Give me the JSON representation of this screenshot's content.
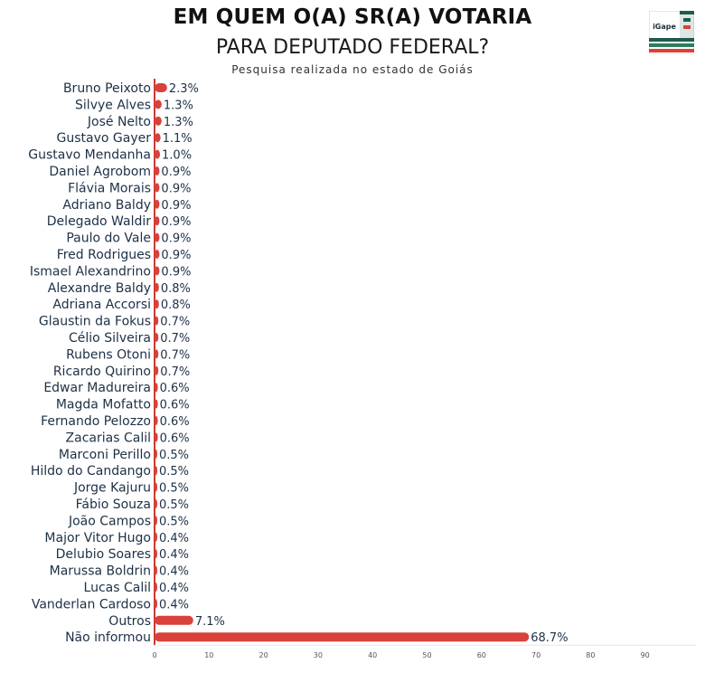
{
  "header": {
    "title_line1": "EM QUEM O(A) SR(A) VOTARIA",
    "title_line2": "PARA DEPUTADO FEDERAL?",
    "subtitle": "Pesquisa realizada no estado de Goiás"
  },
  "logo": {
    "text": "iGape",
    "colors": [
      "#1f5c4e",
      "#2e7d5b",
      "#d9413a",
      "#c8d3c8"
    ]
  },
  "colors": {
    "bar": "#d9413a",
    "axis": "#cc3b32",
    "text": "#1d3046"
  },
  "chart_data": {
    "type": "bar",
    "orientation": "horizontal",
    "categories": [
      "Bruno Peixoto",
      "Silvye Alves",
      "José Nelto",
      "Gustavo Gayer",
      "Gustavo Mendanha",
      "Daniel Agrobom",
      "Flávia Morais",
      "Adriano Baldy",
      "Delegado Waldir",
      "Paulo do Vale",
      "Fred Rodrigues",
      "Ismael Alexandrino",
      "Alexandre Baldy",
      "Adriana Accorsi",
      "Glaustin da Fokus",
      "Célio Silveira",
      "Rubens Otoni",
      "Ricardo Quirino",
      "Edwar Madureira",
      "Magda Mofatto",
      "Fernando Pelozzo",
      "Zacarias Calil",
      "Marconi Perillo",
      "Hildo do Candango",
      "Jorge Kajuru",
      "Fábio Souza",
      "João Campos",
      "Major Vitor Hugo",
      "Delubio Soares",
      "Marussa Boldrin",
      "Lucas Calil",
      "Vanderlan Cardoso",
      "Outros",
      "Não informou"
    ],
    "values": [
      2.3,
      1.3,
      1.3,
      1.1,
      1.0,
      0.9,
      0.9,
      0.9,
      0.9,
      0.9,
      0.9,
      0.9,
      0.8,
      0.8,
      0.7,
      0.7,
      0.7,
      0.7,
      0.6,
      0.6,
      0.6,
      0.6,
      0.5,
      0.5,
      0.5,
      0.5,
      0.5,
      0.4,
      0.4,
      0.4,
      0.4,
      0.4,
      7.1,
      68.7
    ],
    "value_labels": [
      "2.3%",
      "1.3%",
      "1.3%",
      "1.1%",
      "1.0%",
      "0.9%",
      "0.9%",
      "0.9%",
      "0.9%",
      "0.9%",
      "0.9%",
      "0.9%",
      "0.8%",
      "0.8%",
      "0.7%",
      "0.7%",
      "0.7%",
      "0.7%",
      "0.6%",
      "0.6%",
      "0.6%",
      "0.6%",
      "0.5%",
      "0.5%",
      "0.5%",
      "0.5%",
      "0.5%",
      "0.4%",
      "0.4%",
      "0.4%",
      "0.4%",
      "0.4%",
      "7.1%",
      "68.7%"
    ],
    "xticks": [
      0,
      10,
      20,
      30,
      40,
      50,
      60,
      70,
      80,
      90
    ],
    "xlim": [
      0,
      100
    ],
    "grid": false
  }
}
